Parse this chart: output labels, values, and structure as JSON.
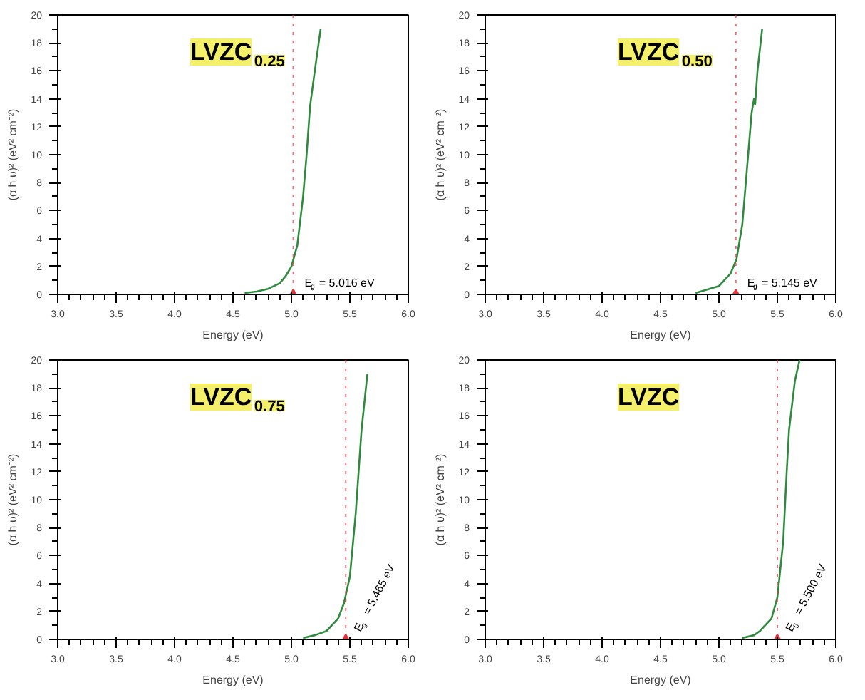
{
  "chart_data": [
    {
      "type": "line",
      "title": "LVZC$_{0.25}$",
      "xlabel": "Energy (eV)",
      "ylabel": "(α h υ)² (eV² cm⁻²)",
      "xlim": [
        3,
        6
      ],
      "ylim": [
        0,
        20
      ],
      "xticks": [
        {
          "value": 3,
          "label": "3.0"
        },
        3.5,
        {
          "value": 4,
          "label": "4.0"
        },
        4.5,
        {
          "value": 5,
          "label": "5.0"
        },
        5.5,
        {
          "value": 6,
          "label": "6.0"
        }
      ],
      "yticks": [
        0,
        2,
        4,
        6,
        8,
        10,
        12,
        14,
        16,
        18,
        20
      ],
      "grid": false,
      "series": [
        {
          "color": "#2e8b3e",
          "x": [
            4.6,
            4.7,
            4.8,
            4.9,
            4.95,
            5.0,
            5.05,
            5.1,
            5.13,
            5.16,
            5.2,
            5.25
          ],
          "values": [
            0.1,
            0.2,
            0.4,
            0.8,
            1.3,
            2.0,
            3.5,
            7,
            10,
            13.5,
            16,
            19
          ]
        }
      ],
      "ref_lines": [
        {
          "axis": "x",
          "value": 5.016,
          "color": "#e8303a",
          "line_style": "dotted"
        }
      ],
      "annotations": [
        {
          "text": "E$_{g}$ = 5.016 eV",
          "x": 5.016,
          "y": 0
        }
      ]
    },
    {
      "type": "line",
      "title": "LVZC$_{0.50}$",
      "xlabel": "Energy (eV)",
      "ylabel": "(α h υ)² (eV² cm⁻²)",
      "xlim": [
        3,
        6
      ],
      "ylim": [
        0,
        20
      ],
      "xticks": [
        {
          "value": 3,
          "label": "3.0"
        },
        3.5,
        {
          "value": 4,
          "label": "4.0"
        },
        4.5,
        {
          "value": 5,
          "label": "5.0"
        },
        5.5,
        {
          "value": 6,
          "label": "6.0"
        }
      ],
      "yticks": [
        0,
        2,
        4,
        6,
        8,
        10,
        12,
        14,
        16,
        18,
        20
      ],
      "grid": false,
      "series": [
        {
          "color": "#2e8b3e",
          "x": [
            4.8,
            5.0,
            5.1,
            5.15,
            5.2,
            5.25,
            5.28,
            5.3,
            5.31,
            5.33,
            5.37
          ],
          "values": [
            0.1,
            0.6,
            1.5,
            2.5,
            5,
            10,
            13,
            14,
            13.6,
            16,
            19
          ]
        }
      ],
      "ref_lines": [
        {
          "axis": "x",
          "value": 5.145,
          "color": "#e8303a",
          "line_style": "dotted"
        }
      ],
      "annotations": [
        {
          "text": "E$_{g}$ = 5.145 eV",
          "x": 5.145,
          "y": 0
        }
      ]
    },
    {
      "type": "line",
      "title": "LVZC$_{0.75}$",
      "xlabel": "Energy (eV)",
      "ylabel": "(α h υ)² (eV² cm⁻²)",
      "xlim": [
        3,
        6
      ],
      "ylim": [
        0,
        20
      ],
      "xticks": [
        {
          "value": 3,
          "label": "3.0"
        },
        3.5,
        {
          "value": 4,
          "label": "4.0"
        },
        4.5,
        {
          "value": 5,
          "label": "5.0"
        },
        5.5,
        {
          "value": 6,
          "label": "6.0"
        }
      ],
      "yticks": [
        0,
        2,
        4,
        6,
        8,
        10,
        12,
        14,
        16,
        18,
        20
      ],
      "grid": false,
      "series": [
        {
          "color": "#2e8b3e",
          "x": [
            5.1,
            5.2,
            5.3,
            5.4,
            5.45,
            5.5,
            5.55,
            5.6,
            5.65
          ],
          "values": [
            0.1,
            0.3,
            0.6,
            1.5,
            2.6,
            4.5,
            9,
            15,
            19
          ]
        }
      ],
      "ref_lines": [
        {
          "axis": "x",
          "value": 5.465,
          "color": "#e8303a",
          "line_style": "dotted"
        }
      ],
      "annotations": [
        {
          "text": "E$_{g}$ = 5.465 eV",
          "x": 5.465,
          "y": 0
        }
      ]
    },
    {
      "type": "line",
      "title": "LVZC",
      "xlabel": "Energy (eV)",
      "ylabel": "(α h υ)² (eV² cm⁻²)",
      "xlim": [
        3,
        6
      ],
      "ylim": [
        0,
        20
      ],
      "xticks": [
        {
          "value": 3,
          "label": "3.0"
        },
        3.5,
        {
          "value": 4,
          "label": "4.0"
        },
        4.5,
        {
          "value": 5,
          "label": "5.0"
        },
        5.5,
        {
          "value": 6,
          "label": "6.0"
        }
      ],
      "yticks": [
        0,
        2,
        4,
        6,
        8,
        10,
        12,
        14,
        16,
        18,
        20
      ],
      "grid": false,
      "series": [
        {
          "color": "#2e8b3e",
          "x": [
            5.2,
            5.3,
            5.35,
            5.45,
            5.5,
            5.55,
            5.58,
            5.6,
            5.65,
            5.69
          ],
          "values": [
            0.1,
            0.3,
            0.6,
            1.5,
            3,
            7,
            12,
            15,
            18.5,
            20
          ]
        }
      ],
      "ref_lines": [
        {
          "axis": "x",
          "value": 5.5,
          "color": "#e8303a",
          "line_style": "dotted"
        }
      ],
      "annotations": [
        {
          "text": "E$_{g}$ = 5.500 eV",
          "x": 5.5,
          "y": 0
        }
      ]
    }
  ]
}
